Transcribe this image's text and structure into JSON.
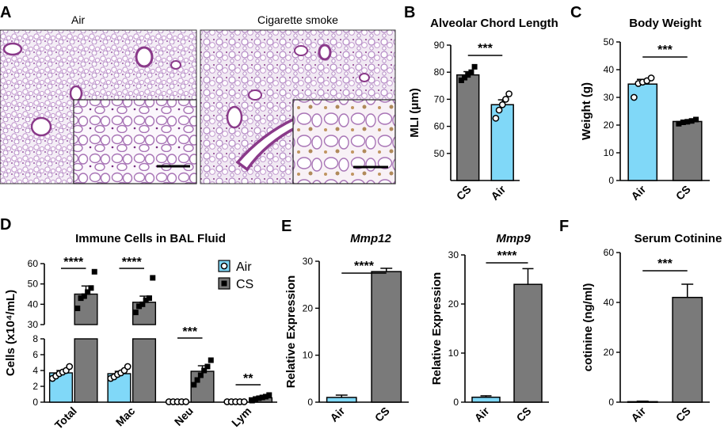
{
  "panel_letters": {
    "A": "A",
    "B": "B",
    "C": "C",
    "D": "D",
    "E": "E",
    "F": "F"
  },
  "colors": {
    "air": "#80d8f8",
    "cs": "#7a7a7a",
    "tissue": "#c49bd0",
    "tissue_dark": "#8a3a8a",
    "hemo": "#b08a5a"
  },
  "histology": {
    "left_label": "Air",
    "right_label": "Cigarette smoke"
  },
  "chart_data": [
    {
      "id": "B",
      "type": "bar",
      "title": "Alveolar Chord Length",
      "xlabel": "",
      "ylabel": "MLI (μm)",
      "ylim": [
        40,
        90
      ],
      "yticks": [
        50,
        60,
        70,
        80,
        90
      ],
      "categories": [
        "CS",
        "Air"
      ],
      "values": [
        79,
        68
      ],
      "errors": [
        1.2,
        1.8
      ],
      "points": [
        [
          77,
          78,
          79,
          80,
          82
        ],
        [
          63,
          66,
          68,
          70,
          72
        ]
      ],
      "significance": "***"
    },
    {
      "id": "C",
      "type": "bar",
      "title": "Body Weight",
      "xlabel": "",
      "ylabel": "Weight (g)",
      "ylim": [
        0,
        50
      ],
      "yticks": [
        0,
        10,
        20,
        30,
        40,
        50
      ],
      "categories": [
        "Air",
        "CS"
      ],
      "values": [
        34.8,
        21.3
      ],
      "errors": [
        1.7,
        0.4
      ],
      "points": [
        [
          30,
          35,
          35.5,
          36,
          37
        ],
        [
          20.5,
          21,
          21.2,
          21.5,
          22
        ]
      ],
      "significance": "***"
    },
    {
      "id": "D",
      "type": "bar",
      "title": "Immune Cells in BAL Fluid",
      "xlabel": "",
      "ylabel": "Cells (x10⁴/mL)",
      "ylim_lower": [
        0,
        8
      ],
      "ylim_upper": [
        30,
        60
      ],
      "yticks_lower": [
        0,
        2,
        4,
        6,
        8
      ],
      "yticks_upper": [
        30,
        40,
        50,
        60
      ],
      "categories": [
        "Total",
        "Mac",
        "Neu",
        "Lym"
      ],
      "series": [
        {
          "name": "Air",
          "values": [
            3.7,
            3.6,
            0.05,
            0.05
          ],
          "errors": [
            0.3,
            0.3,
            0.02,
            0.02
          ],
          "points": [
            [
              3.0,
              3.3,
              3.6,
              3.8,
              4.0,
              4.5
            ],
            [
              3.0,
              3.2,
              3.5,
              3.7,
              4.0,
              4.5
            ],
            [
              0.05,
              0.05,
              0.05,
              0.05,
              0.05
            ],
            [
              0.05,
              0.05,
              0.05,
              0.05,
              0.05
            ]
          ]
        },
        {
          "name": "CS",
          "values": [
            45,
            41,
            3.9,
            0.55
          ],
          "errors": [
            4,
            3,
            0.7,
            0.15
          ],
          "points": [
            [
              38,
              43,
              44,
              46,
              48,
              56
            ],
            [
              36,
              39,
              40,
              42,
              43,
              53
            ],
            [
              2.2,
              2.8,
              3.4,
              4.0,
              4.5,
              5.3
            ],
            [
              0.2,
              0.4,
              0.5,
              0.6,
              0.7,
              0.9
            ]
          ]
        }
      ],
      "significance": [
        "****",
        "****",
        "***",
        "**"
      ],
      "legend_position": "top-right"
    },
    {
      "id": "E1",
      "type": "bar",
      "title": "Mmp12",
      "xlabel": "",
      "ylabel": "Relative Expression",
      "ylim": [
        0,
        30
      ],
      "yticks": [
        0,
        10,
        20,
        30
      ],
      "categories": [
        "Air",
        "CS"
      ],
      "values": [
        1.0,
        27.8
      ],
      "errors": [
        0.5,
        0.7
      ],
      "significance": "****"
    },
    {
      "id": "E2",
      "type": "bar",
      "title": "Mmp9",
      "xlabel": "",
      "ylabel": "Relative Expression",
      "ylim": [
        0,
        30
      ],
      "yticks": [
        0,
        10,
        20,
        30
      ],
      "categories": [
        "Air",
        "CS"
      ],
      "values": [
        1.0,
        24.0
      ],
      "errors": [
        0.3,
        3.2
      ],
      "significance": "****"
    },
    {
      "id": "F",
      "type": "bar",
      "title": "Serum Cotinine",
      "xlabel": "",
      "ylabel": "cotinine (ng/ml)",
      "ylim": [
        0,
        60
      ],
      "yticks": [
        0,
        20,
        40,
        60
      ],
      "categories": [
        "Air",
        "CS"
      ],
      "values": [
        0.2,
        42
      ],
      "errors": [
        0.2,
        5.3
      ],
      "significance": "***"
    }
  ]
}
